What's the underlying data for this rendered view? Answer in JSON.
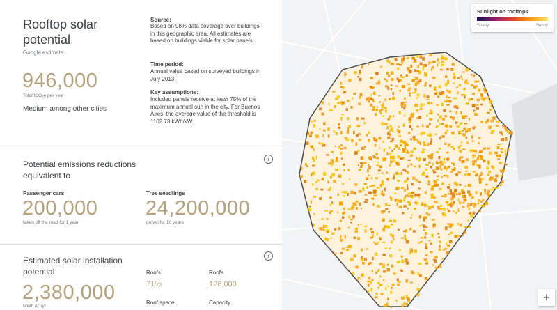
{
  "summary": {
    "title": "Rooftop solar potential",
    "subtitle": "Google estimate",
    "value": "946,000",
    "value_unit": "Total tCO₂e per year",
    "comparison": "Medium among other cities"
  },
  "notes": [
    {
      "label": "Source:",
      "text": "Based on 98% data coverage over buildings in this geographic area. All estimates are based on buildings viable for solar panels."
    },
    {
      "label": "Time period:",
      "text": "Annual value based on surveyed buildings in July 2013."
    },
    {
      "label": "Key assumptions:",
      "text": "Included panels receive at least 75% of the maximum annual sun in the city. For Buenos Aires, the average value of the threshold is 1102.73 kWh/kW."
    }
  ],
  "emissions": {
    "title": "Potential emissions reductions equivalent to",
    "items": [
      {
        "label": "Passenger cars",
        "value": "200,000",
        "caption": "taken off the road for 1 year"
      },
      {
        "label": "Tree seedlings",
        "value": "24,200,000",
        "caption": "grown for 10 years"
      }
    ]
  },
  "installation": {
    "title": "Estimated solar installation potential",
    "value": "2,380,000",
    "unit": "MWh AC/yr",
    "stats": [
      {
        "label": "Roofs",
        "value": "71%"
      },
      {
        "label": "Roofs",
        "value": "128,000"
      },
      {
        "label": "Roof space",
        "value": null
      },
      {
        "label": "Capacity",
        "value": null
      }
    ]
  },
  "map": {
    "legend_title": "Sunlight on rooftops",
    "legend_low": "Shady",
    "legend_high": "Sunny"
  }
}
